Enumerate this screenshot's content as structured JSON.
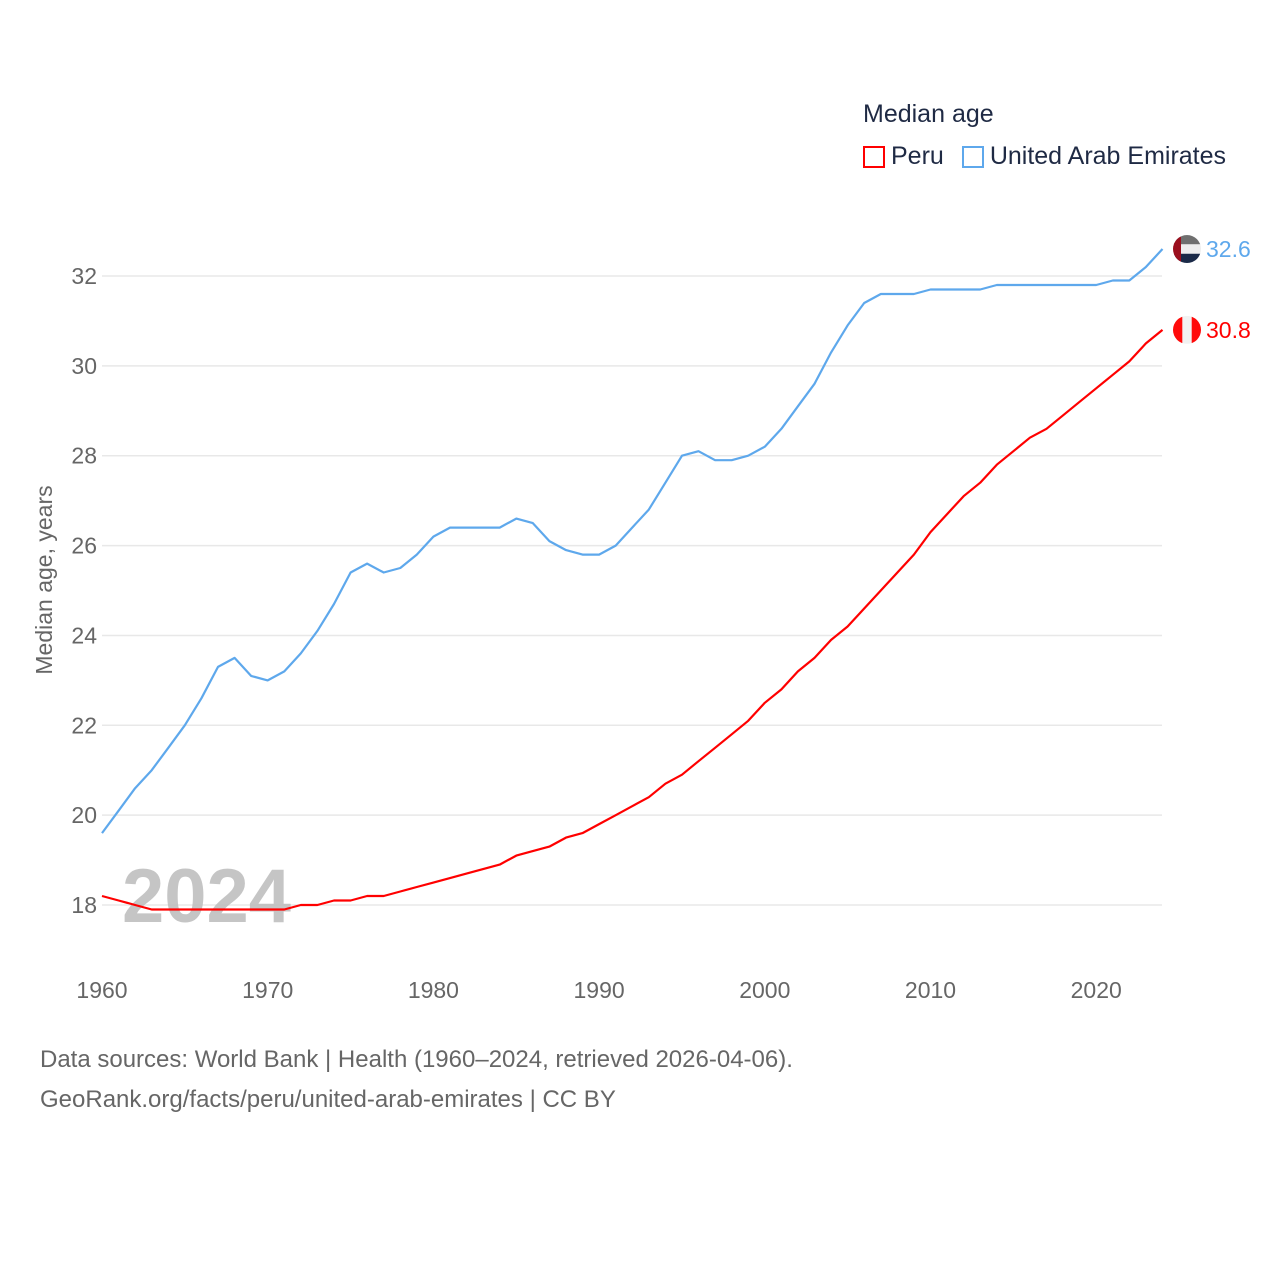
{
  "chart_data": {
    "type": "line",
    "legend_title": "Median age",
    "ylabel": "Median age, years",
    "xlabel": "",
    "xlim": [
      1960,
      2024
    ],
    "ylim": [
      17,
      33
    ],
    "xticks": [
      1960,
      1970,
      1980,
      1990,
      2000,
      2010,
      2020
    ],
    "yticks": [
      18,
      20,
      22,
      24,
      26,
      28,
      30,
      32
    ],
    "grid": true,
    "legend_placement": "top-right",
    "watermark_year": "2024",
    "x": [
      1960,
      1961,
      1962,
      1963,
      1964,
      1965,
      1966,
      1967,
      1968,
      1969,
      1970,
      1971,
      1972,
      1973,
      1974,
      1975,
      1976,
      1977,
      1978,
      1979,
      1980,
      1981,
      1982,
      1983,
      1984,
      1985,
      1986,
      1987,
      1988,
      1989,
      1990,
      1991,
      1992,
      1993,
      1994,
      1995,
      1996,
      1997,
      1998,
      1999,
      2000,
      2001,
      2002,
      2003,
      2004,
      2005,
      2006,
      2007,
      2008,
      2009,
      2010,
      2011,
      2012,
      2013,
      2014,
      2015,
      2016,
      2017,
      2018,
      2019,
      2020,
      2021,
      2022,
      2023,
      2024
    ],
    "series": [
      {
        "name": "Peru",
        "color": "#ff0000",
        "end_label": "30.8",
        "values": [
          18.2,
          18.1,
          18.0,
          17.9,
          17.9,
          17.9,
          17.9,
          17.9,
          17.9,
          17.9,
          17.9,
          17.9,
          18.0,
          18.0,
          18.1,
          18.1,
          18.2,
          18.2,
          18.3,
          18.4,
          18.5,
          18.6,
          18.7,
          18.8,
          18.9,
          19.1,
          19.2,
          19.3,
          19.5,
          19.6,
          19.8,
          20.0,
          20.2,
          20.4,
          20.7,
          20.9,
          21.2,
          21.5,
          21.8,
          22.1,
          22.5,
          22.8,
          23.2,
          23.5,
          23.9,
          24.2,
          24.6,
          25.0,
          25.4,
          25.8,
          26.3,
          26.7,
          27.1,
          27.4,
          27.8,
          28.1,
          28.4,
          28.6,
          28.9,
          29.2,
          29.5,
          29.8,
          30.1,
          30.5,
          30.8
        ]
      },
      {
        "name": "United Arab Emirates",
        "color": "#5ea8ec",
        "end_label": "32.6",
        "values": [
          19.6,
          20.1,
          20.6,
          21.0,
          21.5,
          22.0,
          22.6,
          23.3,
          23.5,
          23.1,
          23.0,
          23.2,
          23.6,
          24.1,
          24.7,
          25.4,
          25.6,
          25.4,
          25.5,
          25.8,
          26.2,
          26.4,
          26.4,
          26.4,
          26.4,
          26.6,
          26.5,
          26.1,
          25.9,
          25.8,
          25.8,
          26.0,
          26.4,
          26.8,
          27.4,
          28.0,
          28.1,
          27.9,
          27.9,
          28.0,
          28.2,
          28.6,
          29.1,
          29.6,
          30.3,
          30.9,
          31.4,
          31.6,
          31.6,
          31.6,
          31.7,
          31.7,
          31.7,
          31.7,
          31.8,
          31.8,
          31.8,
          31.8,
          31.8,
          31.8,
          31.8,
          31.9,
          31.9,
          32.2,
          32.6
        ]
      }
    ]
  },
  "footer": {
    "line1": "Data sources: World Bank | Health (1960–2024, retrieved 2026-04-06).",
    "line2": "GeoRank.org/facts/peru/united-arab-emirates | CC BY"
  }
}
